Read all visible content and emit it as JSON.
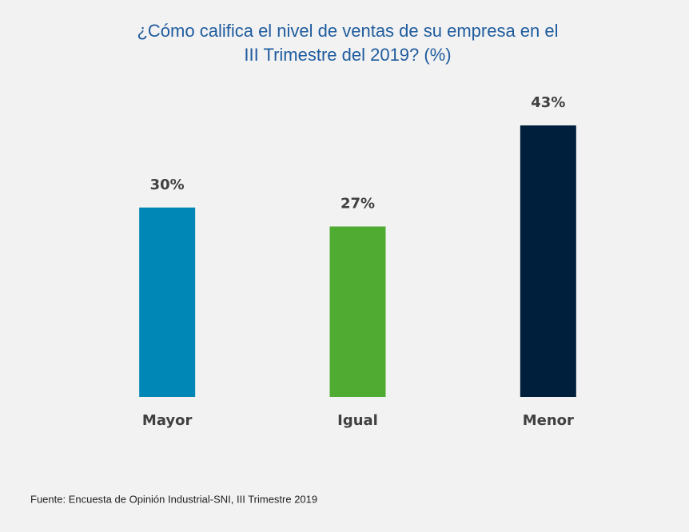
{
  "chart_data": {
    "type": "bar",
    "title": [
      "¿Cómo califica el nivel de ventas de su empresa en el",
      "III Trimestre del 2019? (%)"
    ],
    "categories": [
      "Mayor",
      "Igual",
      "Menor"
    ],
    "values": [
      30,
      27,
      43
    ],
    "value_labels": [
      "30%",
      "27%",
      "43%"
    ],
    "colors": [
      "#0087b5",
      "#4fab32",
      "#001f3d"
    ],
    "source": "Fuente: Encuesta de Opinión Industrial-SNI, III Trimestre 2019"
  }
}
